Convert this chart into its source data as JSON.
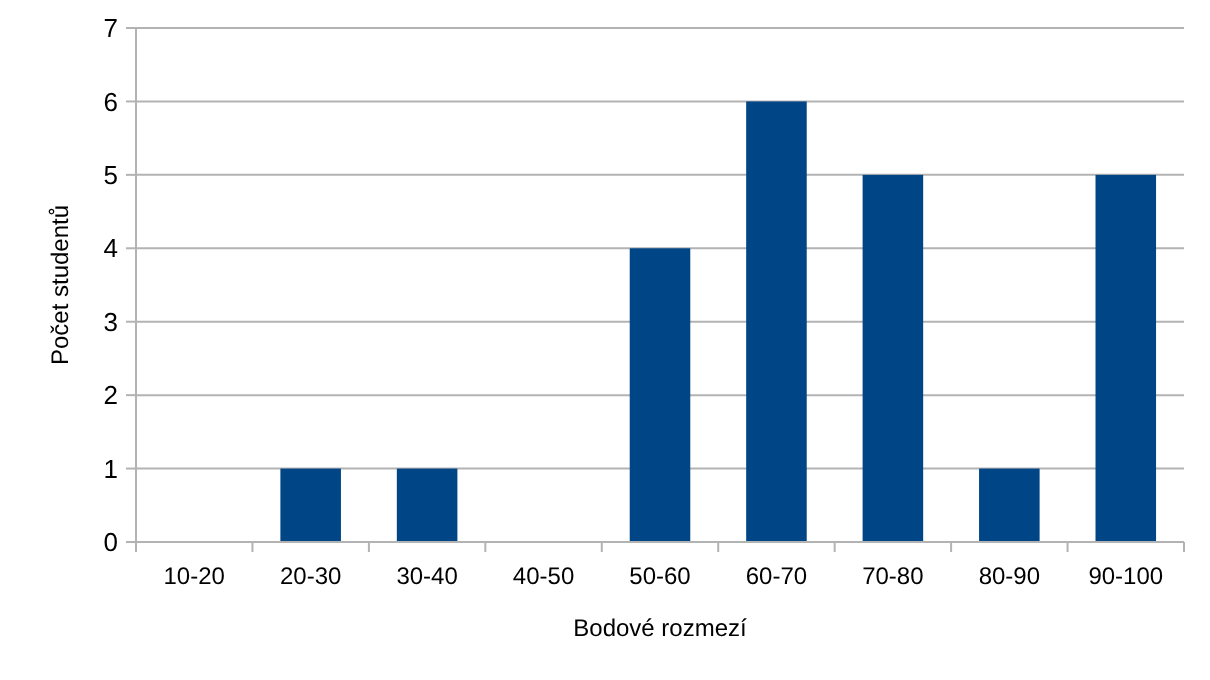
{
  "chart_data": {
    "type": "bar",
    "xlabel": "Bodové rozmezí",
    "ylabel": "Počet studentů",
    "categories": [
      "10-20",
      "20-30",
      "30-40",
      "40-50",
      "50-60",
      "60-70",
      "70-80",
      "80-90",
      "90-100"
    ],
    "values": [
      0,
      1,
      1,
      0,
      4,
      6,
      5,
      1,
      5
    ],
    "color": "#004586",
    "ylim": [
      0,
      7
    ],
    "yticks": [
      0,
      1,
      2,
      3,
      4,
      5,
      6,
      7
    ],
    "grid": "y"
  }
}
